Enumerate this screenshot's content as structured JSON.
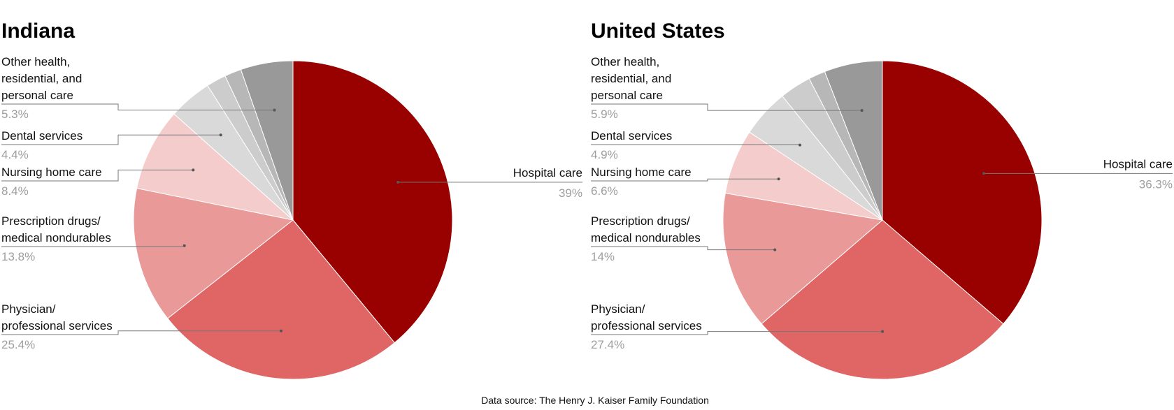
{
  "chart_data": [
    {
      "type": "pie",
      "title": "Indiana",
      "slices": [
        {
          "label": "Hospital care",
          "value": 39,
          "value_label": "39%",
          "color": "#990000"
        },
        {
          "label": "Physician/ professional services",
          "value": 25.4,
          "value_label": "25.4%",
          "color": "#e06666"
        },
        {
          "label": "Prescription drugs/ medical nondurables",
          "value": 13.8,
          "value_label": "13.8%",
          "color": "#ea9999"
        },
        {
          "label": "Nursing home care",
          "value": 8.4,
          "value_label": "8.4%",
          "color": "#f4cccc"
        },
        {
          "label": "Dental services",
          "value": 4.4,
          "value_label": "4.4%",
          "color": "#d9d9d9"
        },
        {
          "label": "",
          "value": 2.0,
          "value_label": "",
          "color": "#cccccc"
        },
        {
          "label": "",
          "value": 1.7,
          "value_label": "",
          "color": "#b7b7b7"
        },
        {
          "label": "Other health, residential, and personal care",
          "value": 5.3,
          "value_label": "5.3%",
          "color": "#999999"
        }
      ]
    },
    {
      "type": "pie",
      "title": "United States",
      "slices": [
        {
          "label": "Hospital care",
          "value": 36.3,
          "value_label": "36.3%",
          "color": "#990000"
        },
        {
          "label": "Physician/ professional services",
          "value": 27.4,
          "value_label": "27.4%",
          "color": "#e06666"
        },
        {
          "label": "Prescription drugs/ medical nondurables",
          "value": 14,
          "value_label": "14%",
          "color": "#ea9999"
        },
        {
          "label": "Nursing home care",
          "value": 6.6,
          "value_label": "6.6%",
          "color": "#f4cccc"
        },
        {
          "label": "Dental services",
          "value": 4.9,
          "value_label": "4.9%",
          "color": "#d9d9d9"
        },
        {
          "label": "",
          "value": 3.2,
          "value_label": "",
          "color": "#cccccc"
        },
        {
          "label": "",
          "value": 1.7,
          "value_label": "",
          "color": "#b7b7b7"
        },
        {
          "label": "Other health, residential, and personal care",
          "value": 5.9,
          "value_label": "5.9%",
          "color": "#999999"
        }
      ]
    }
  ],
  "source_note": "Data source: The Henry J. Kaiser Family Foundation"
}
